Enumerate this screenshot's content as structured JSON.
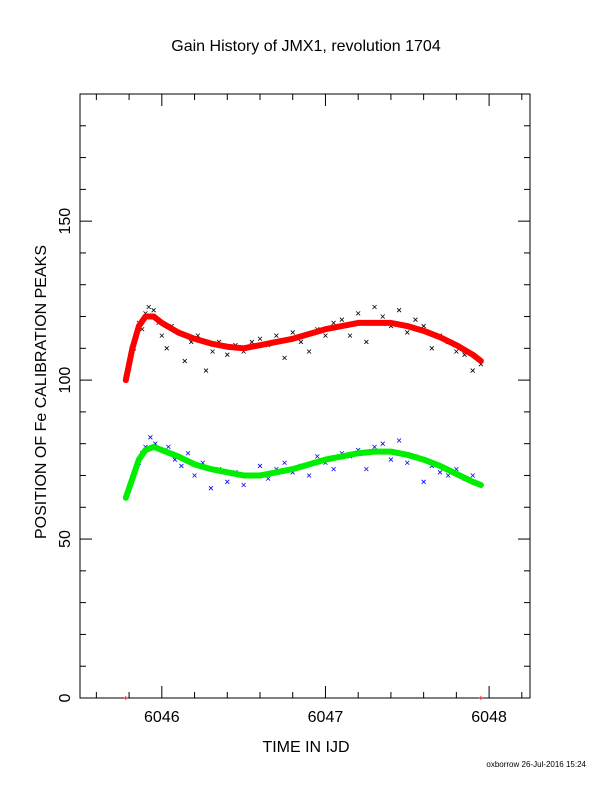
{
  "chart_data": {
    "type": "scatter",
    "title": "Gain History of JMX1, revolution 1704",
    "xlabel": "TIME IN IJD",
    "ylabel": "POSITION OF Fe CALIBRATION PEAKS",
    "footer": "oxborrow 26-Jul-2016 15:24",
    "xlim": [
      6045.5,
      6048.25
    ],
    "ylim": [
      0,
      190
    ],
    "xticks": [
      6046,
      6047,
      6048
    ],
    "yticks": [
      0,
      50,
      100,
      150
    ],
    "xminorticks": [
      6045.6,
      6045.8,
      6046.2,
      6046.4,
      6046.6,
      6046.8,
      6047.2,
      6047.4,
      6047.6,
      6047.8,
      6048.2
    ],
    "yminorticks": [
      10,
      20,
      30,
      40,
      60,
      70,
      80,
      90,
      110,
      120,
      130,
      140,
      160,
      170,
      180
    ],
    "series": [
      {
        "mode": "scatter",
        "marker": "x",
        "color": "#000000",
        "x": [
          6045.78,
          6045.8,
          6045.83,
          6045.86,
          6045.88,
          6045.9,
          6045.92,
          6045.95,
          6045.98,
          6046.0,
          6046.03,
          6046.06,
          6046.1,
          6046.14,
          6046.18,
          6046.22,
          6046.27,
          6046.31,
          6046.35,
          6046.4,
          6046.45,
          6046.5,
          6046.55,
          6046.6,
          6046.65,
          6046.7,
          6046.75,
          6046.8,
          6046.85,
          6046.9,
          6046.95,
          6047.0,
          6047.05,
          6047.1,
          6047.15,
          6047.2,
          6047.25,
          6047.3,
          6047.35,
          6047.4,
          6047.45,
          6047.5,
          6047.55,
          6047.6,
          6047.65,
          6047.7,
          6047.75,
          6047.8,
          6047.85,
          6047.9,
          6047.95
        ],
        "values": [
          101,
          104,
          110,
          118,
          116,
          121,
          123,
          122,
          118,
          114,
          110,
          117,
          115,
          106,
          112,
          114,
          103,
          109,
          112,
          108,
          111,
          109,
          112,
          113,
          111,
          114,
          107,
          115,
          112,
          109,
          116,
          114,
          118,
          119,
          114,
          121,
          112,
          123,
          120,
          117,
          122,
          115,
          119,
          117,
          110,
          114,
          112,
          109,
          108,
          103,
          105
        ]
      },
      {
        "mode": "line",
        "color": "#ff0000",
        "x": [
          6045.78,
          6045.82,
          6045.86,
          6045.9,
          6045.95,
          6046.0,
          6046.1,
          6046.2,
          6046.3,
          6046.4,
          6046.5,
          6046.6,
          6046.7,
          6046.8,
          6046.9,
          6047.0,
          6047.1,
          6047.2,
          6047.3,
          6047.4,
          6047.5,
          6047.6,
          6047.7,
          6047.8,
          6047.9,
          6047.95
        ],
        "values": [
          100,
          110,
          117,
          120,
          120,
          118,
          115,
          113,
          111.5,
          110.5,
          110,
          111,
          112,
          113,
          114.5,
          116,
          117,
          118,
          118,
          118,
          117,
          115.5,
          113.5,
          111,
          108,
          106
        ]
      },
      {
        "mode": "scatter",
        "marker": "x",
        "color": "#0000ff",
        "x": [
          6045.78,
          6045.8,
          6045.83,
          6045.86,
          6045.88,
          6045.9,
          6045.93,
          6045.96,
          6046.0,
          6046.04,
          6046.08,
          6046.12,
          6046.16,
          6046.2,
          6046.25,
          6046.3,
          6046.35,
          6046.4,
          6046.45,
          6046.5,
          6046.55,
          6046.6,
          6046.65,
          6046.7,
          6046.75,
          6046.8,
          6046.85,
          6046.9,
          6046.95,
          6047.0,
          6047.05,
          6047.1,
          6047.15,
          6047.2,
          6047.25,
          6047.3,
          6047.35,
          6047.4,
          6047.45,
          6047.5,
          6047.55,
          6047.6,
          6047.65,
          6047.7,
          6047.75,
          6047.8,
          6047.85,
          6047.9,
          6047.95
        ],
        "values": [
          63,
          66,
          70,
          74,
          77,
          79,
          82,
          80,
          78,
          79,
          75,
          73,
          77,
          70,
          74,
          66,
          72,
          68,
          71,
          67,
          70,
          73,
          69,
          72,
          74,
          71,
          73,
          70,
          76,
          74,
          72,
          77,
          76,
          78,
          72,
          79,
          80,
          75,
          81,
          74,
          76,
          68,
          73,
          71,
          70,
          72,
          69,
          70,
          67
        ]
      },
      {
        "mode": "line",
        "color": "#00ee00",
        "x": [
          6045.78,
          6045.82,
          6045.86,
          6045.9,
          6045.95,
          6046.0,
          6046.1,
          6046.2,
          6046.3,
          6046.4,
          6046.5,
          6046.6,
          6046.7,
          6046.8,
          6046.9,
          6047.0,
          6047.1,
          6047.2,
          6047.3,
          6047.4,
          6047.5,
          6047.6,
          6047.7,
          6047.8,
          6047.9,
          6047.95
        ],
        "values": [
          63,
          69,
          75,
          78,
          79,
          78,
          76,
          73.5,
          72,
          71,
          70,
          70,
          71,
          72,
          73.5,
          75,
          76,
          77,
          77.5,
          77.5,
          76.5,
          75,
          73,
          70.5,
          68,
          67
        ]
      },
      {
        "mode": "scatter",
        "marker": "+",
        "color": "#ff0000",
        "x": [
          6045.78,
          6047.95
        ],
        "values": [
          0,
          0
        ]
      }
    ]
  }
}
